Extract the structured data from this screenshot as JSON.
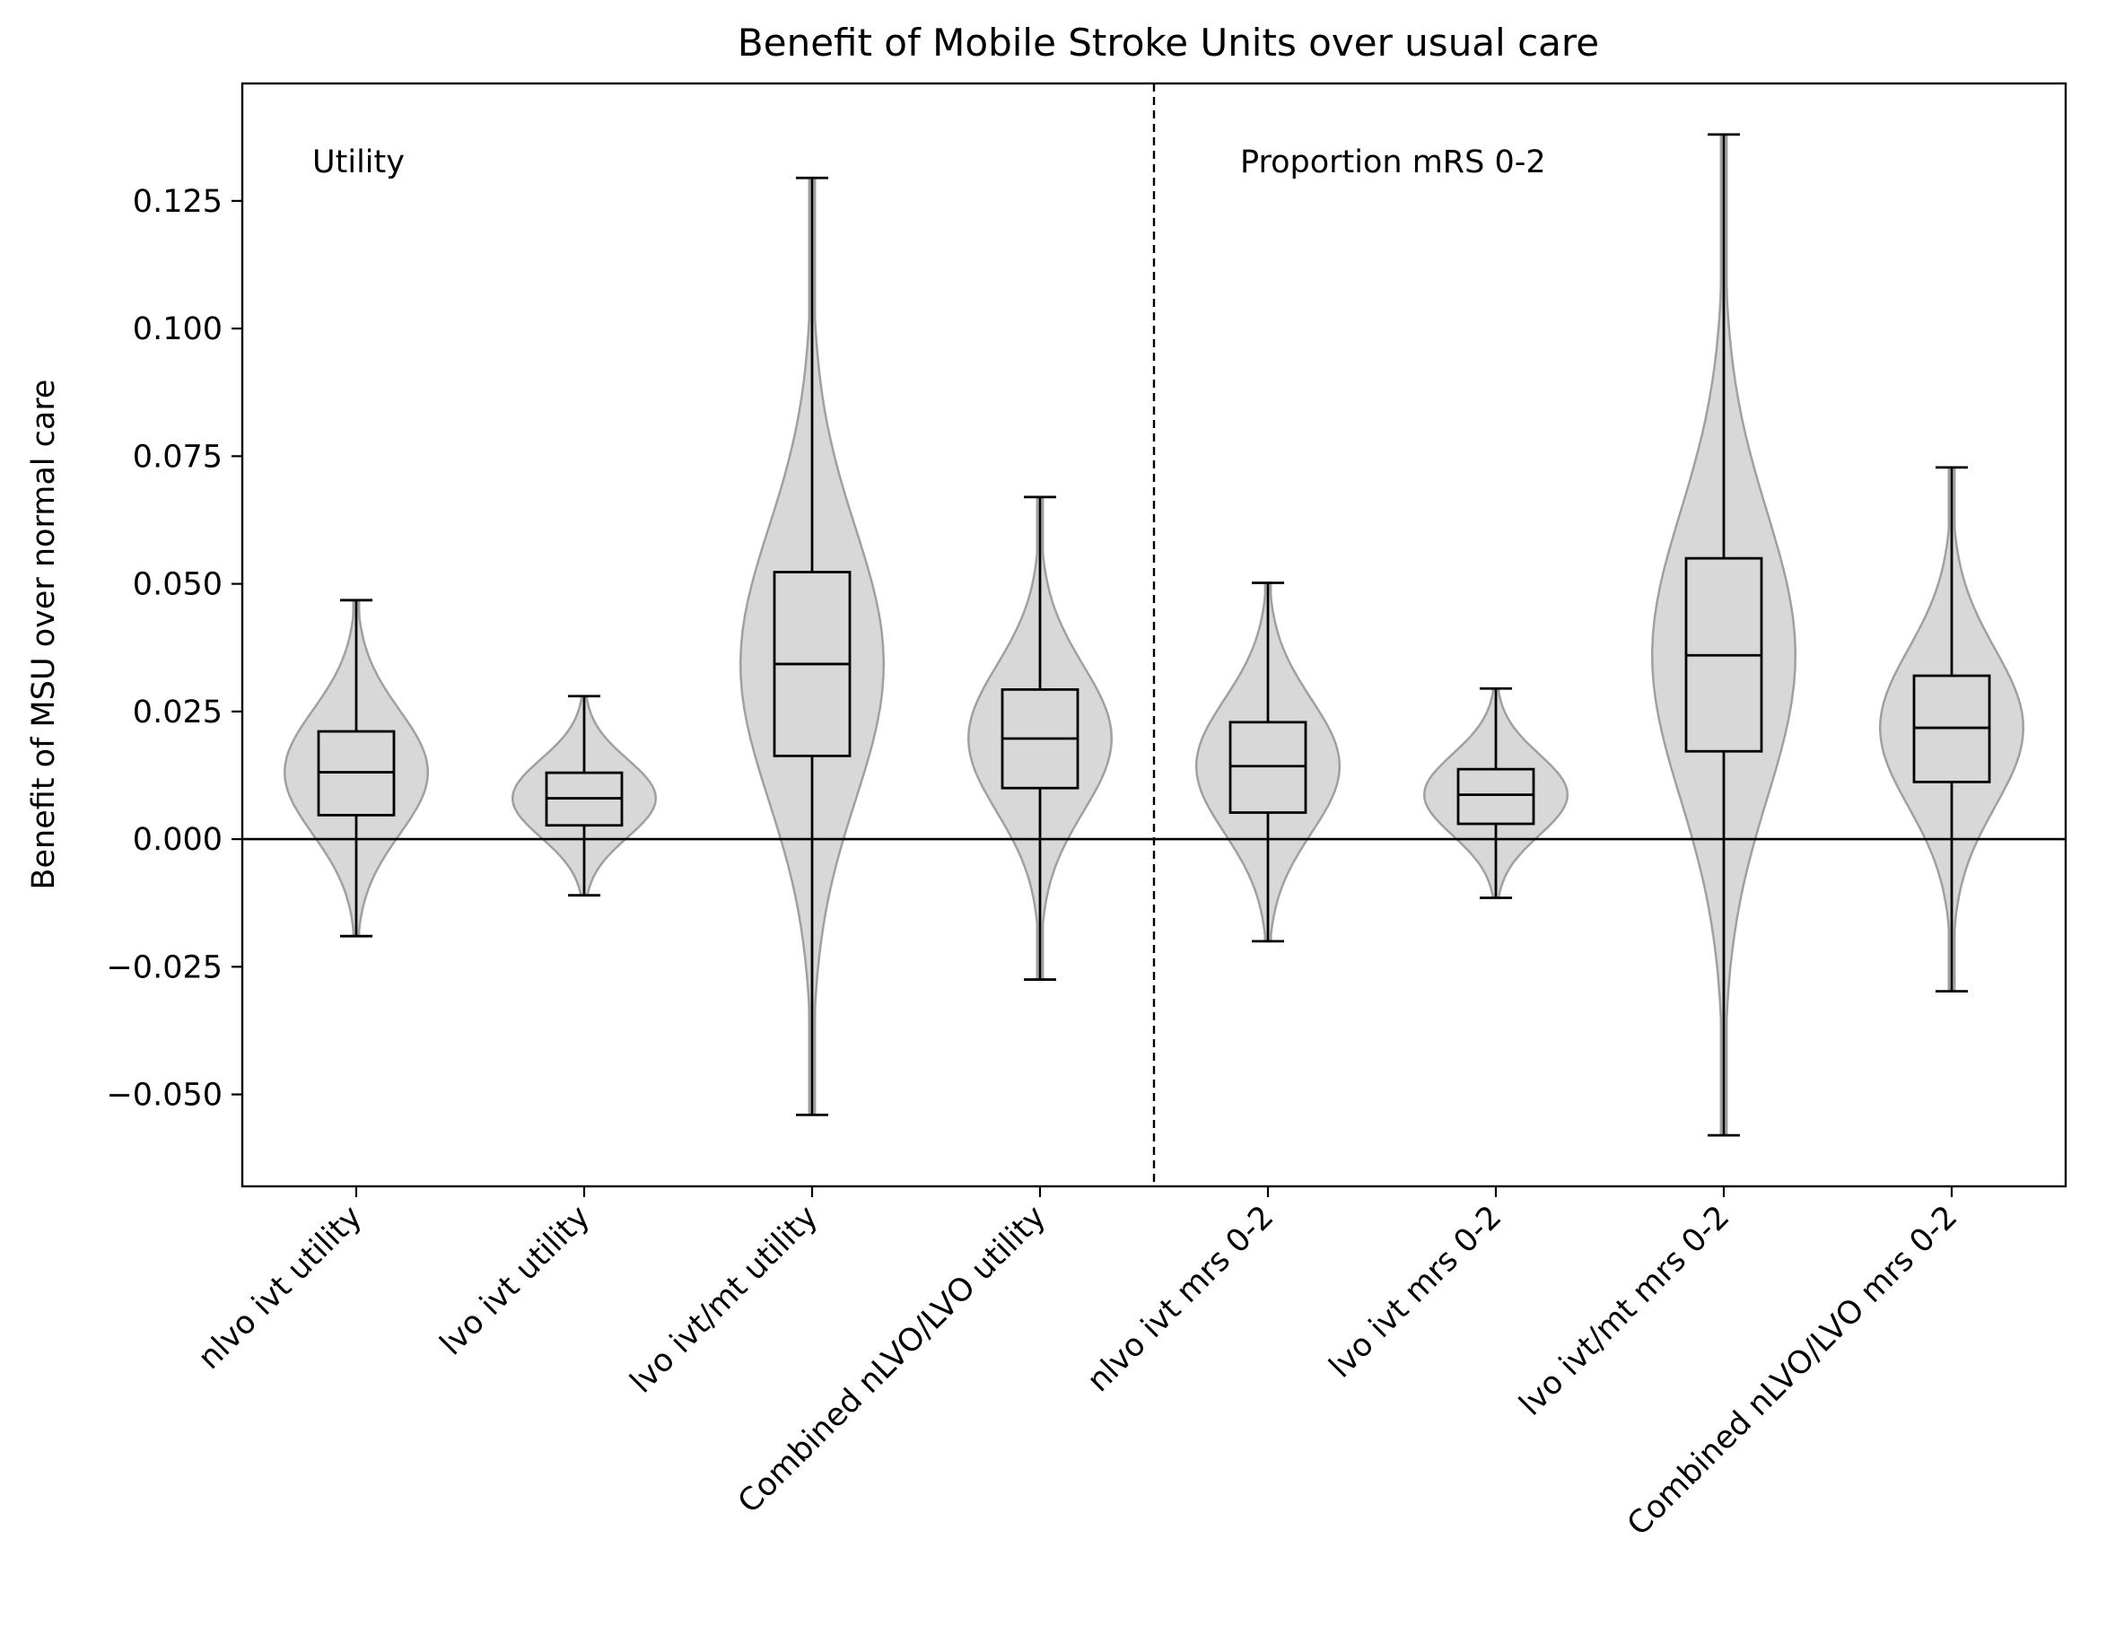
{
  "chart_data": {
    "type": "violin",
    "title": "Benefit of Mobile Stroke Units over usual care",
    "xlabel": "",
    "ylabel": "Benefit of MSU over normal care",
    "ylim": [
      -0.068,
      0.148
    ],
    "yticks": [
      -0.05,
      -0.025,
      0.0,
      0.025,
      0.05,
      0.075,
      0.1,
      0.125
    ],
    "ytick_labels": [
      "−0.050",
      "−0.025",
      "0.000",
      "0.025",
      "0.050",
      "0.075",
      "0.100",
      "0.125"
    ],
    "categories": [
      "nlvo ivt utility",
      "lvo ivt utility",
      "lvo ivt/mt utility",
      "Combined nLVO/LVO utility",
      "nlvo ivt mrs 0-2",
      "lvo ivt mrs 0-2",
      "lvo ivt/mt mrs 0-2",
      "Combined nLVO/LVO mrs 0-2"
    ],
    "section_labels": [
      "Utility",
      "Proportion mRS 0-2"
    ],
    "zero_line": 0,
    "grid": false,
    "legend": "none",
    "violin_color": "#d8d8d8",
    "violin_edge_color": "#a0a0a0",
    "box_color": "#000000",
    "boxes": [
      {
        "min": -0.019,
        "q1": 0.0047,
        "median": 0.0131,
        "q3": 0.0211,
        "max": 0.0468
      },
      {
        "min": -0.011,
        "q1": 0.0027,
        "median": 0.008,
        "q3": 0.013,
        "max": 0.028
      },
      {
        "min": -0.054,
        "q1": 0.0163,
        "median": 0.0343,
        "q3": 0.0523,
        "max": 0.1295
      },
      {
        "min": -0.0275,
        "q1": 0.01,
        "median": 0.0197,
        "q3": 0.0293,
        "max": 0.067
      },
      {
        "min": -0.02,
        "q1": 0.0052,
        "median": 0.0143,
        "q3": 0.0229,
        "max": 0.0502
      },
      {
        "min": -0.0115,
        "q1": 0.003,
        "median": 0.0087,
        "q3": 0.0137,
        "max": 0.0295
      },
      {
        "min": -0.058,
        "q1": 0.0172,
        "median": 0.036,
        "q3": 0.055,
        "max": 0.138
      },
      {
        "min": -0.0298,
        "q1": 0.0112,
        "median": 0.0218,
        "q3": 0.032,
        "max": 0.0728
      }
    ]
  }
}
